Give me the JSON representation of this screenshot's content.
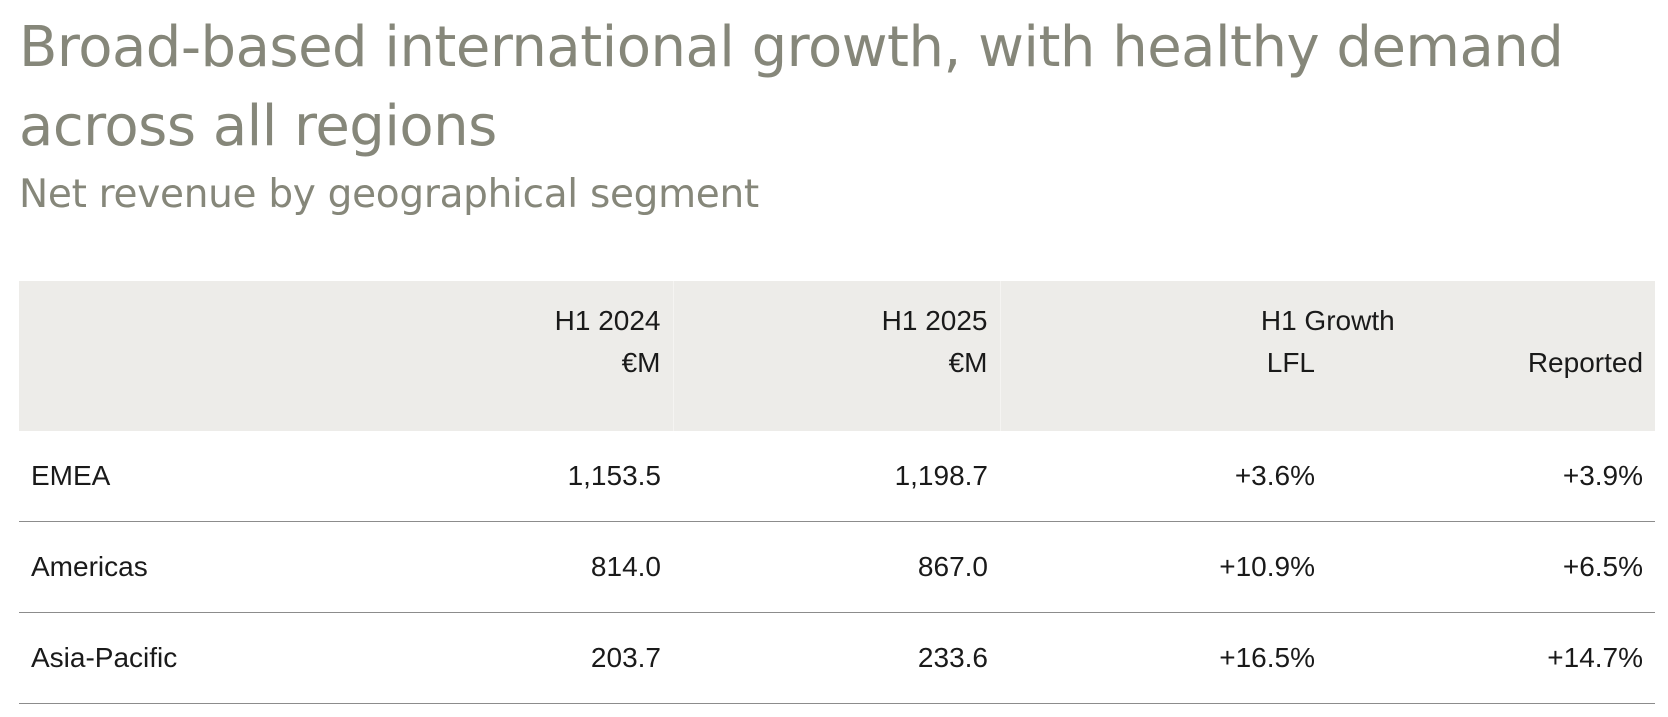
{
  "title": "Broad-based international growth, with healthy demand across all regions",
  "subtitle": "Net revenue by geographical segment",
  "table": {
    "header_row1": {
      "h1_2024": "H1 2024",
      "h1_2025": "H1 2025",
      "h1_growth": "H1 Growth"
    },
    "header_row2": {
      "unit_2024": "€M",
      "unit_2025": "€M",
      "lfl": "LFL",
      "reported": "Reported"
    },
    "rows": [
      {
        "region": "EMEA",
        "h1_2024": "1,153.5",
        "h1_2025": "1,198.7",
        "lfl": "+3.6%",
        "reported": "+3.9%"
      },
      {
        "region": "Americas",
        "h1_2024": "814.0",
        "h1_2025": "867.0",
        "lfl": "+10.9%",
        "reported": "+6.5%"
      },
      {
        "region": "Asia-Pacific",
        "h1_2024": "203.7",
        "h1_2025": "233.6",
        "lfl": "+16.5%",
        "reported": "+14.7%"
      }
    ]
  },
  "colors": {
    "title": "#86877a",
    "header_background": "#edece9",
    "row_divider": "#8c8c8c",
    "text": "#1a1a1a"
  }
}
